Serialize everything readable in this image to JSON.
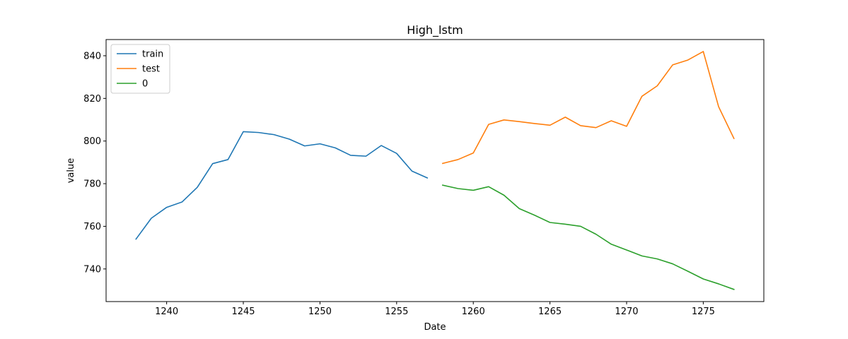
{
  "chart_data": {
    "type": "line",
    "title": "High_lstm",
    "xlabel": "Date",
    "ylabel": "value",
    "xlim": [
      1236.05,
      1278.95
    ],
    "ylim": [
      724.7,
      847.6
    ],
    "xticks": [
      1240,
      1245,
      1250,
      1255,
      1260,
      1265,
      1270,
      1275
    ],
    "yticks": [
      740,
      760,
      780,
      800,
      820,
      840
    ],
    "grid": false,
    "legend_position": "upper-left",
    "series": [
      {
        "name": "train",
        "color": "#1f77b4",
        "x": [
          1238,
          1239,
          1240,
          1241,
          1242,
          1243,
          1244,
          1245,
          1246,
          1247,
          1248,
          1249,
          1250,
          1251,
          1252,
          1253,
          1254,
          1255,
          1256,
          1257
        ],
        "y": [
          754.0,
          763.8,
          768.9,
          771.4,
          778.3,
          789.4,
          791.3,
          804.4,
          804.0,
          803.0,
          800.9,
          797.7,
          798.7,
          796.8,
          793.3,
          792.9,
          797.9,
          794.2,
          785.9,
          782.7
        ]
      },
      {
        "name": "test",
        "color": "#ff7f0e",
        "x": [
          1258,
          1259,
          1260,
          1261,
          1262,
          1263,
          1264,
          1265,
          1266,
          1267,
          1268,
          1269,
          1270,
          1271,
          1272,
          1273,
          1274,
          1275,
          1276,
          1277
        ],
        "y": [
          789.5,
          791.3,
          794.4,
          807.8,
          809.9,
          809.1,
          808.2,
          807.4,
          811.2,
          807.2,
          806.3,
          809.5,
          806.9,
          821.0,
          825.9,
          835.7,
          838.0,
          842.0,
          816.1,
          801.2
        ]
      },
      {
        "name": "0",
        "color": "#2ca02c",
        "x": [
          1258,
          1259,
          1260,
          1261,
          1262,
          1263,
          1264,
          1265,
          1266,
          1267,
          1268,
          1269,
          1270,
          1271,
          1272,
          1273,
          1274,
          1275,
          1276,
          1277
        ],
        "y": [
          779.3,
          777.7,
          776.9,
          778.6,
          774.6,
          768.3,
          765.2,
          761.8,
          761.0,
          760.0,
          756.3,
          751.6,
          748.9,
          746.1,
          744.7,
          742.4,
          738.9,
          735.3,
          733.0,
          730.4
        ]
      }
    ]
  }
}
